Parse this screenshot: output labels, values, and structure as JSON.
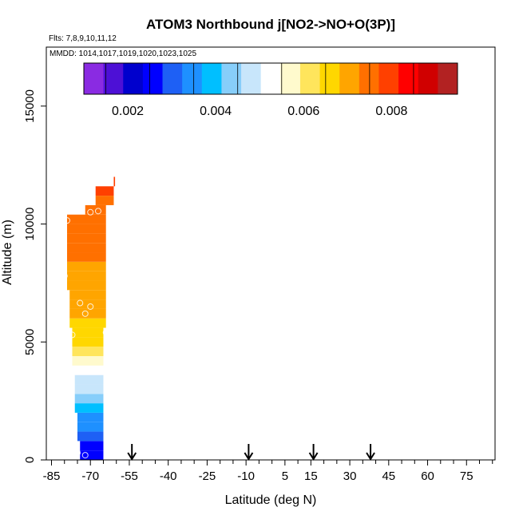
{
  "chart_data": {
    "type": "heatmap",
    "title": "ATOM3 Northbound j[NO2->NO+O(3P)]",
    "flights_label": "Flts: 7,8,9,10,11,12",
    "dates_label": "MMDD: 1014,1017,1019,1020,1023,1025",
    "xlabel": "Latitude (deg N)",
    "ylabel": "Altitude (m)",
    "xlim": [
      -87,
      86
    ],
    "ylim": [
      0,
      17500
    ],
    "x_ticks": [
      -85,
      -70,
      -55,
      -40,
      -25,
      -10,
      5,
      15,
      30,
      45,
      60,
      75
    ],
    "x_minor_ticks": [
      -80,
      -75,
      -65,
      -60,
      -50,
      -45,
      -35,
      -30,
      -20,
      -15,
      -5,
      0,
      10,
      20,
      25,
      35,
      40,
      50,
      55,
      65,
      70,
      80,
      85
    ],
    "y_ticks": [
      0,
      5000,
      10000,
      15000
    ],
    "colorbar": {
      "range": [
        0.001,
        0.0095
      ],
      "tick_values": [
        0.002,
        0.004,
        0.006,
        0.008
      ],
      "tick_labels": [
        "0.002",
        "0.004",
        "0.006",
        "0.008"
      ],
      "colors": [
        "#8a2be2",
        "#4d10d6",
        "#0000cd",
        "#0000ff",
        "#1e60f5",
        "#1e90ff",
        "#00bfff",
        "#87cefa",
        "#c8e6fb",
        "#ffffff",
        "#fffacd",
        "#ffe55c",
        "#ffd700",
        "#ffa500",
        "#ff7000",
        "#ff4000",
        "#ff0000",
        "#d00000",
        "#b22222"
      ]
    },
    "profile": [
      {
        "alt": 200,
        "lat_min": -74,
        "lat_max": -65,
        "value": 0.0025
      },
      {
        "alt": 600,
        "lat_min": -74,
        "lat_max": -65,
        "value": 0.0027
      },
      {
        "alt": 1000,
        "lat_min": -75,
        "lat_max": -65,
        "value": 0.003
      },
      {
        "alt": 1400,
        "lat_min": -75,
        "lat_max": -65,
        "value": 0.0033
      },
      {
        "alt": 1800,
        "lat_min": -75,
        "lat_max": -65,
        "value": 0.0036
      },
      {
        "alt": 2200,
        "lat_min": -76,
        "lat_max": -65,
        "value": 0.004
      },
      {
        "alt": 2600,
        "lat_min": -76,
        "lat_max": -65,
        "value": 0.0043
      },
      {
        "alt": 3000,
        "lat_min": -76,
        "lat_max": -65,
        "value": 0.0046
      },
      {
        "alt": 3400,
        "lat_min": -76,
        "lat_max": -65,
        "value": 0.005
      },
      {
        "alt": 3800,
        "lat_min": -77,
        "lat_max": -65,
        "value": 0.0054
      },
      {
        "alt": 4200,
        "lat_min": -77,
        "lat_max": -65,
        "value": 0.0058
      },
      {
        "alt": 4600,
        "lat_min": -77,
        "lat_max": -65,
        "value": 0.0061
      },
      {
        "alt": 5000,
        "lat_min": -77,
        "lat_max": -65,
        "value": 0.0064
      },
      {
        "alt": 5400,
        "lat_min": -77,
        "lat_max": -65,
        "value": 0.0066
      },
      {
        "alt": 5800,
        "lat_min": -78,
        "lat_max": -64,
        "value": 0.0068
      },
      {
        "alt": 6200,
        "lat_min": -78,
        "lat_max": -64,
        "value": 0.0069
      },
      {
        "alt": 6600,
        "lat_min": -78,
        "lat_max": -64,
        "value": 0.007
      },
      {
        "alt": 7000,
        "lat_min": -78,
        "lat_max": -64,
        "value": 0.0071
      },
      {
        "alt": 7400,
        "lat_min": -79,
        "lat_max": -64,
        "value": 0.0071
      },
      {
        "alt": 7800,
        "lat_min": -79,
        "lat_max": -64,
        "value": 0.0072
      },
      {
        "alt": 8200,
        "lat_min": -79,
        "lat_max": -64,
        "value": 0.0072
      },
      {
        "alt": 8600,
        "lat_min": -79,
        "lat_max": -64,
        "value": 0.0073
      },
      {
        "alt": 9000,
        "lat_min": -79,
        "lat_max": -64,
        "value": 0.0073
      },
      {
        "alt": 9400,
        "lat_min": -79,
        "lat_max": -64,
        "value": 0.0074
      },
      {
        "alt": 9800,
        "lat_min": -79,
        "lat_max": -64,
        "value": 0.0075
      },
      {
        "alt": 10200,
        "lat_min": -79,
        "lat_max": -64,
        "value": 0.0075
      },
      {
        "alt": 10600,
        "lat_min": -72,
        "lat_max": -64,
        "value": 0.0076
      },
      {
        "alt": 11000,
        "lat_min": -68,
        "lat_max": -61,
        "value": 0.0077
      },
      {
        "alt": 11400,
        "lat_min": -68,
        "lat_max": -61,
        "value": 0.0078
      },
      {
        "alt": 11800,
        "lat_min": -61,
        "lat_max": -60.5,
        "value": 0.008
      }
    ],
    "sample_points": [
      {
        "lat": -79,
        "alt": 10150
      },
      {
        "lat": -70,
        "alt": 10500
      },
      {
        "lat": -67,
        "alt": 10550
      },
      {
        "lat": -80,
        "alt": 7800
      },
      {
        "lat": -74,
        "alt": 6650
      },
      {
        "lat": -72,
        "alt": 6200
      },
      {
        "lat": -70,
        "alt": 6500
      },
      {
        "lat": -77,
        "alt": 5300
      },
      {
        "lat": -64,
        "alt": 5400
      },
      {
        "lat": -75,
        "alt": 300
      },
      {
        "lat": -72,
        "alt": 200
      },
      {
        "lat": -63,
        "alt": 250
      }
    ],
    "arrow_latitudes": [
      -54,
      -9,
      16,
      38
    ]
  }
}
